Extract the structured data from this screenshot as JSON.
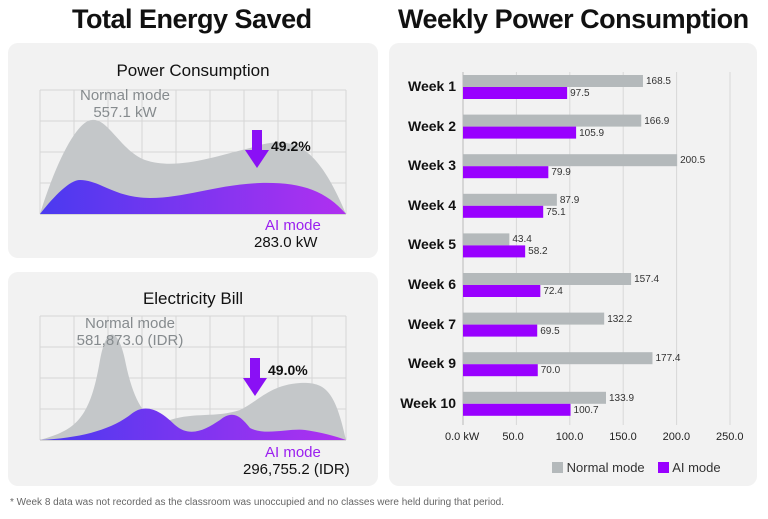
{
  "left_title": "Total Energy Saved",
  "right_title": "Weekly Power Consumption",
  "power": {
    "title": "Power Consumption",
    "normal_label": "Normal mode",
    "normal_value": "557.1 kW",
    "ai_label": "AI mode",
    "ai_value": "283.0 kW",
    "reduction": "49.2%"
  },
  "bill": {
    "title": "Electricity Bill",
    "normal_label": "Normal mode",
    "normal_value": "581,873.0 (IDR)",
    "ai_label": "AI mode",
    "ai_value": "296,755.2 (IDR)",
    "reduction": "49.0%"
  },
  "chart_data": {
    "type": "bar",
    "orientation": "horizontal",
    "categories": [
      "Week 1",
      "Week 2",
      "Week 3",
      "Week 4",
      "Week 5",
      "Week 6",
      "Week 7",
      "Week 9",
      "Week 10"
    ],
    "series": [
      {
        "name": "Normal mode",
        "color": "#b4b9bb",
        "values": [
          168.5,
          166.9,
          200.5,
          87.9,
          43.4,
          157.4,
          132.2,
          177.4,
          133.9
        ]
      },
      {
        "name": "AI mode",
        "color": "#9900ff",
        "values": [
          97.5,
          105.9,
          79.9,
          75.1,
          58.2,
          72.4,
          69.5,
          70.0,
          100.7
        ]
      }
    ],
    "value_labels": {
      "Normal mode": [
        "168.5",
        "166.9",
        "200.5",
        "87.9",
        "43.4",
        "157.4",
        "132.2",
        "177.4",
        "133.9"
      ],
      "AI mode": [
        "97.5",
        "105.9",
        "79.9",
        "75.1",
        "58.2",
        "72.4",
        "69.5",
        "70.0",
        "100.7"
      ]
    },
    "xlim": [
      0,
      250
    ],
    "xticks": [
      "0.0 kW",
      "50.0",
      "100.0",
      "150.0",
      "200.0",
      "250.0"
    ],
    "grid": true,
    "legend": "bottom-right"
  },
  "footnote": "* Week 8 data was not recorded as the classroom was unoccupied and no classes were held during that period."
}
